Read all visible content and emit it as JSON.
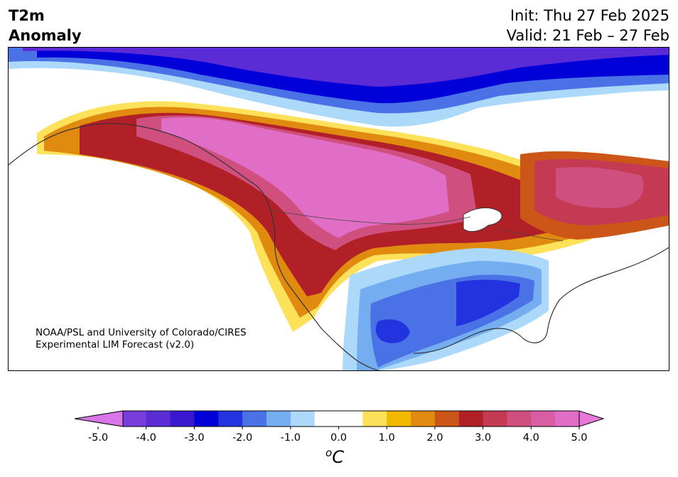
{
  "title": {
    "variable_line1": "T2m",
    "variable_line2": "Anomaly",
    "init": "Init: Thu 27 Feb 2025",
    "valid": "Valid: 21 Feb – 27 Feb"
  },
  "credit": {
    "line1": "NOAA/PSL and University of Colorado/CIRES",
    "line2": "Experimental LIM Forecast (v2.0)"
  },
  "colorbar": {
    "unit_sup": "o",
    "unit_main": "C",
    "tick_labels": [
      "-5.0",
      "-4.0",
      "-3.0",
      "-2.0",
      "-1.0",
      "0.0",
      "1.0",
      "2.0",
      "3.0",
      "4.0",
      "5.0"
    ],
    "bins": [
      {
        "lo": -5.0,
        "hi": -4.5,
        "color": "#9b55d9"
      },
      {
        "lo": -4.5,
        "hi": -4.0,
        "color": "#7a3ddd"
      },
      {
        "lo": -4.0,
        "hi": -3.5,
        "color": "#5b2bd6"
      },
      {
        "lo": -3.5,
        "hi": -3.0,
        "color": "#3a17d0"
      },
      {
        "lo": -3.0,
        "hi": -2.5,
        "color": "#0000d8"
      },
      {
        "lo": -2.5,
        "hi": -2.0,
        "color": "#2233e0"
      },
      {
        "lo": -2.0,
        "hi": -1.5,
        "color": "#4a72e6"
      },
      {
        "lo": -1.5,
        "hi": -1.0,
        "color": "#74aef0"
      },
      {
        "lo": -1.0,
        "hi": -0.5,
        "color": "#acd8fa"
      },
      {
        "lo": -0.5,
        "hi": 0.5,
        "color": "#ffffff"
      },
      {
        "lo": 0.5,
        "hi": 1.0,
        "color": "#fde15a"
      },
      {
        "lo": 1.0,
        "hi": 1.5,
        "color": "#f3b800"
      },
      {
        "lo": 1.5,
        "hi": 2.0,
        "color": "#e08b10"
      },
      {
        "lo": 2.0,
        "hi": 2.5,
        "color": "#cc5518"
      },
      {
        "lo": 2.5,
        "hi": 3.0,
        "color": "#b12026"
      },
      {
        "lo": 3.0,
        "hi": 3.5,
        "color": "#c33a52"
      },
      {
        "lo": 3.5,
        "hi": 4.0,
        "color": "#cf4f7e"
      },
      {
        "lo": 4.0,
        "hi": 4.5,
        "color": "#d85ea3"
      },
      {
        "lo": 4.5,
        "hi": 5.0,
        "color": "#e06ec6"
      }
    ],
    "under_color": "#d876e8",
    "over_color": "#e878d8"
  },
  "map": {
    "region": "North America",
    "projection": "Lambert conformal"
  }
}
